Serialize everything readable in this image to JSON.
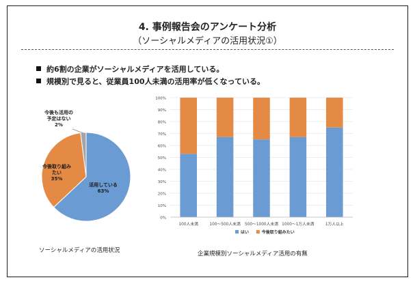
{
  "slide": {
    "title": "4. 事例報告会のアンケート分析",
    "subtitle": "（ソーシャルメディアの活用状況①）",
    "bullets": [
      "約6割の企業がソーシャルメディアを活用している。",
      "規模別で見ると、従業員100人未満の活用率が低くなっている。"
    ]
  },
  "chart_data": [
    {
      "type": "pie",
      "title": "ソーシャルメディアの活用状況",
      "slices": [
        {
          "label": "活用している",
          "value": 63,
          "display": "63%",
          "color": "#6b9bd3"
        },
        {
          "label": "今後取り組みたい",
          "value": 35,
          "display": "35%",
          "color": "#e58a45"
        },
        {
          "label": "今後も活用の予定はない",
          "value": 2,
          "display": "2%",
          "color": "#a5a5a5"
        }
      ]
    },
    {
      "type": "bar",
      "stacked": true,
      "title": "企業規模別ソーシャルメディア活用の有無",
      "categories": [
        "100人未満",
        "100～500人未満",
        "500～1000人未満",
        "1000～1万人未満",
        "1万人以上"
      ],
      "series": [
        {
          "name": "はい",
          "color": "#6b9bd3",
          "values": [
            53,
            67,
            65,
            67,
            75
          ]
        },
        {
          "name": "今後取り組みたい",
          "color": "#e58a45",
          "values": [
            47,
            33,
            35,
            33,
            25
          ]
        }
      ],
      "ylim": [
        0,
        100
      ],
      "yticks": [
        "0%",
        "10%",
        "20%",
        "30%",
        "40%",
        "50%",
        "60%",
        "70%",
        "80%",
        "90%",
        "100%"
      ],
      "grid": true,
      "legend": "bottom"
    }
  ]
}
